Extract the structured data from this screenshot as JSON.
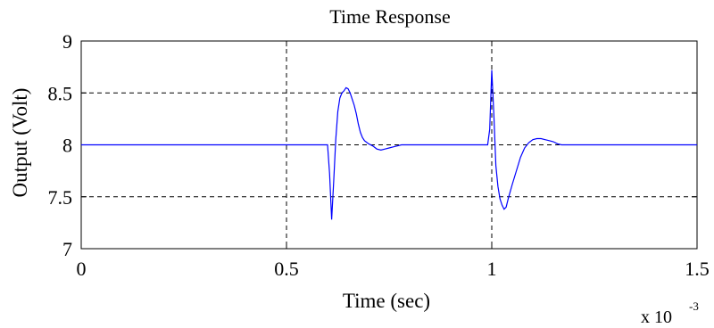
{
  "chart_data": {
    "type": "line",
    "title": "Time Response",
    "xlabel": "Time (sec)",
    "ylabel": "Output (Volt)",
    "x_multiplier": {
      "base": "x 10",
      "exponent": "-3"
    },
    "xlim": [
      0,
      0.0015
    ],
    "ylim": [
      7,
      9
    ],
    "x_ticks": [
      0,
      0.0005,
      0.001,
      0.0015
    ],
    "x_tick_labels": [
      "0",
      "0.5",
      "1",
      "1.5"
    ],
    "y_ticks": [
      7,
      7.5,
      8,
      8.5,
      9
    ],
    "y_tick_labels": [
      "7",
      "7.5",
      "8",
      "8.5",
      "9"
    ],
    "grid": "dashed",
    "series": [
      {
        "color": "#0000ff",
        "x": [
          0,
          0.0006,
          0.000605,
          0.00061,
          0.000615,
          0.00062,
          0.000625,
          0.00063,
          0.000635,
          0.00064,
          0.000645,
          0.00065,
          0.000655,
          0.00066,
          0.000665,
          0.00067,
          0.000675,
          0.00068,
          0.000685,
          0.00069,
          0.0007,
          0.00071,
          0.00072,
          0.00073,
          0.00074,
          0.00075,
          0.00076,
          0.00077,
          0.00078,
          0.00079,
          0.0008,
          0.00099,
          0.000995,
          0.001,
          0.001005,
          0.00101,
          0.001015,
          0.00102,
          0.001025,
          0.00103,
          0.001035,
          0.00104,
          0.00105,
          0.00106,
          0.00107,
          0.00108,
          0.00109,
          0.0011,
          0.00111,
          0.00112,
          0.00113,
          0.00114,
          0.00115,
          0.00116,
          0.00117,
          0.00118,
          0.0012,
          0.0015
        ],
        "y": [
          8,
          8,
          7.72,
          7.28,
          7.65,
          8.05,
          8.32,
          8.45,
          8.5,
          8.52,
          8.55,
          8.54,
          8.5,
          8.44,
          8.38,
          8.3,
          8.2,
          8.12,
          8.07,
          8.04,
          8.01,
          7.99,
          7.96,
          7.95,
          7.96,
          7.97,
          7.98,
          7.99,
          8,
          8,
          8,
          8,
          8.15,
          8.72,
          8.3,
          7.8,
          7.6,
          7.48,
          7.42,
          7.38,
          7.4,
          7.48,
          7.62,
          7.75,
          7.88,
          7.97,
          8.02,
          8.05,
          8.06,
          8.06,
          8.05,
          8.04,
          8.03,
          8.01,
          8,
          8,
          8,
          8
        ]
      }
    ]
  }
}
